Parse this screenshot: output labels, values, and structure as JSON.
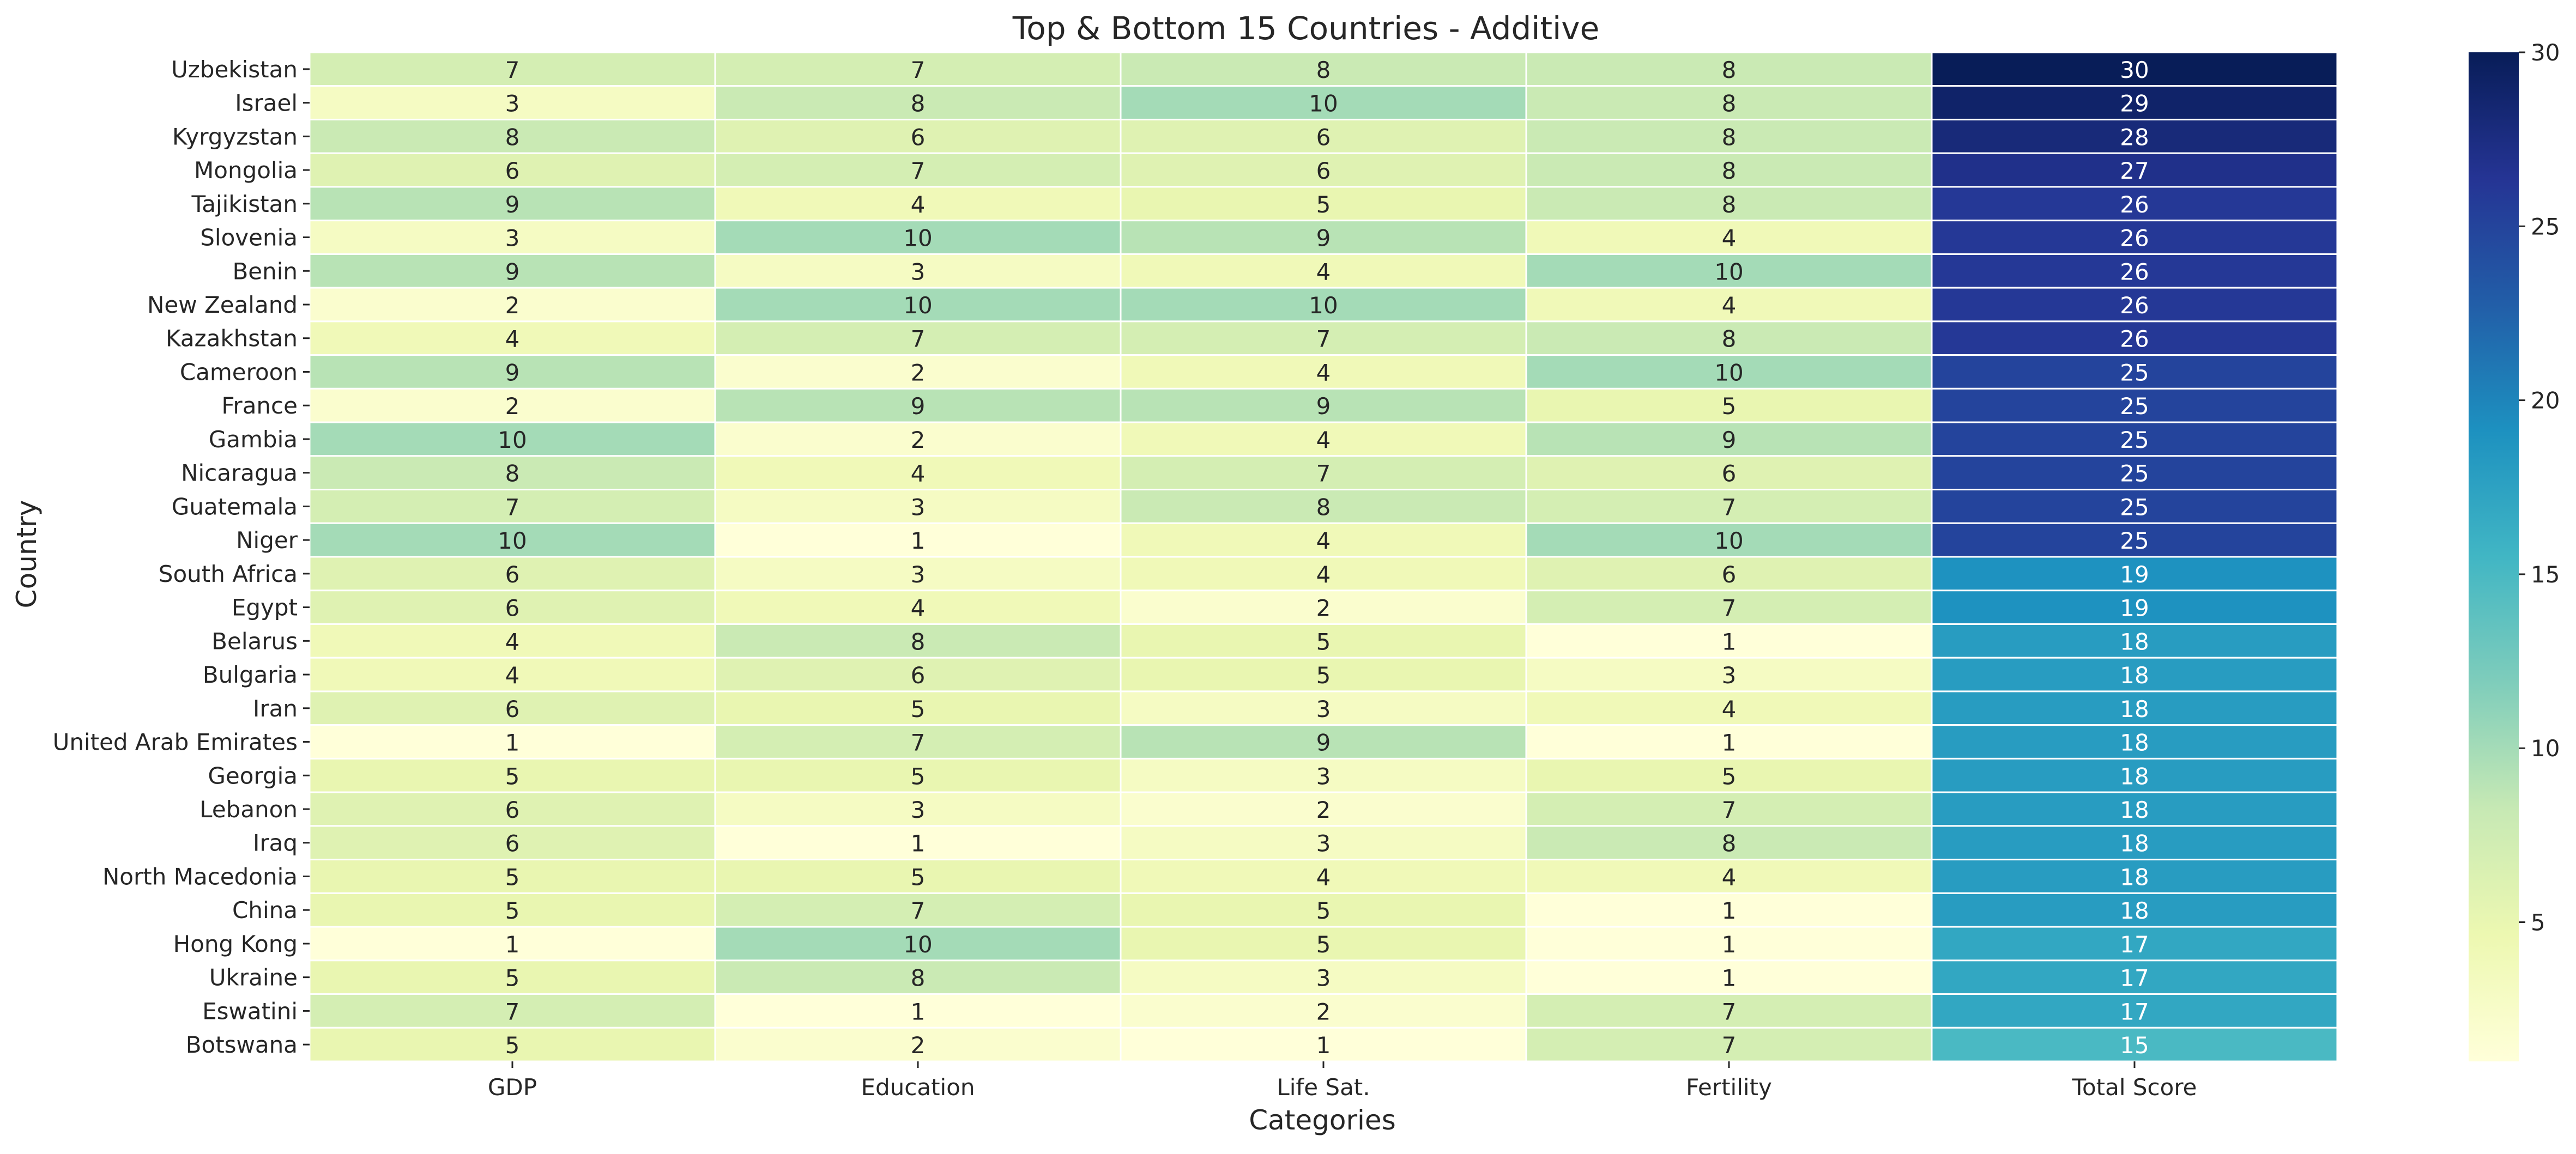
{
  "chart_data": {
    "type": "heatmap",
    "title": "Top & Bottom 15 Countries - Additive",
    "xlabel": "Categories",
    "ylabel": "Country",
    "columns": [
      "GDP",
      "Education",
      "Life Sat.",
      "Fertility",
      "Total Score"
    ],
    "rows": [
      "Uzbekistan",
      "Israel",
      "Kyrgyzstan",
      "Mongolia",
      "Tajikistan",
      "Slovenia",
      "Benin",
      "New Zealand",
      "Kazakhstan",
      "Cameroon",
      "France",
      "Gambia",
      "Nicaragua",
      "Guatemala",
      "Niger",
      "South Africa",
      "Egypt",
      "Belarus",
      "Bulgaria",
      "Iran",
      "United Arab Emirates",
      "Georgia",
      "Lebanon",
      "Iraq",
      "North Macedonia",
      "China",
      "Hong Kong",
      "Ukraine",
      "Eswatini",
      "Botswana"
    ],
    "values": [
      [
        7,
        7,
        8,
        8,
        30
      ],
      [
        3,
        8,
        10,
        8,
        29
      ],
      [
        8,
        6,
        6,
        8,
        28
      ],
      [
        6,
        7,
        6,
        8,
        27
      ],
      [
        9,
        4,
        5,
        8,
        26
      ],
      [
        3,
        10,
        9,
        4,
        26
      ],
      [
        9,
        3,
        4,
        10,
        26
      ],
      [
        2,
        10,
        10,
        4,
        26
      ],
      [
        4,
        7,
        7,
        8,
        26
      ],
      [
        9,
        2,
        4,
        10,
        25
      ],
      [
        2,
        9,
        9,
        5,
        25
      ],
      [
        10,
        2,
        4,
        9,
        25
      ],
      [
        8,
        4,
        7,
        6,
        25
      ],
      [
        7,
        3,
        8,
        7,
        25
      ],
      [
        10,
        1,
        4,
        10,
        25
      ],
      [
        6,
        3,
        4,
        6,
        19
      ],
      [
        6,
        4,
        2,
        7,
        19
      ],
      [
        4,
        8,
        5,
        1,
        18
      ],
      [
        4,
        6,
        5,
        3,
        18
      ],
      [
        6,
        5,
        3,
        4,
        18
      ],
      [
        1,
        7,
        9,
        1,
        18
      ],
      [
        5,
        5,
        3,
        5,
        18
      ],
      [
        6,
        3,
        2,
        7,
        18
      ],
      [
        6,
        1,
        3,
        8,
        18
      ],
      [
        5,
        5,
        4,
        4,
        18
      ],
      [
        5,
        7,
        5,
        1,
        18
      ],
      [
        1,
        10,
        5,
        1,
        17
      ],
      [
        5,
        8,
        3,
        1,
        17
      ],
      [
        7,
        1,
        2,
        7,
        17
      ],
      [
        5,
        2,
        1,
        7,
        15
      ]
    ],
    "colorbar": {
      "min": 1,
      "max": 30,
      "ticks": [
        5,
        10,
        15,
        20,
        25,
        30
      ],
      "colormap": "YlGnBu"
    },
    "grid": false,
    "legend": "colorbar right"
  }
}
